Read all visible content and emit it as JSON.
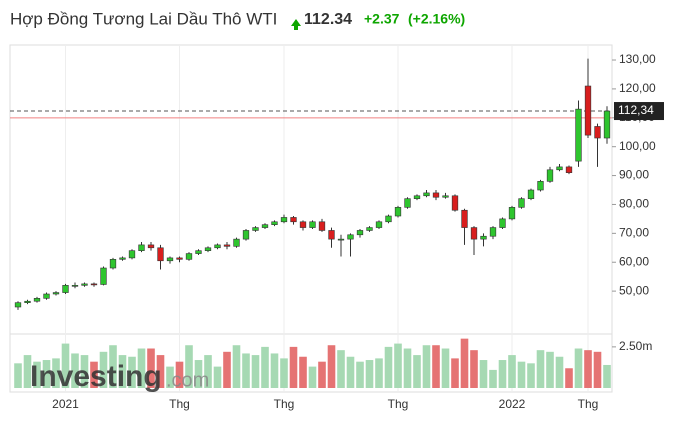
{
  "chart_data": {
    "type": "candlestick",
    "title": "Hợp Đồng Tương Lai Dầu Thô WTI",
    "price": 112.34,
    "change": "+2.37",
    "change_pct": "(+2.16%)",
    "categories": [
      null,
      null,
      null,
      null,
      null,
      "2021",
      null,
      null,
      null,
      null,
      null,
      null,
      null,
      null,
      null,
      null,
      null,
      "Thg",
      null,
      null,
      null,
      null,
      null,
      null,
      null,
      null,
      null,
      null,
      "Thg",
      null,
      null,
      null,
      null,
      null,
      null,
      null,
      null,
      null,
      null,
      null,
      "Thg",
      null,
      null,
      null,
      null,
      null,
      null,
      null,
      null,
      null,
      null,
      null,
      "2022",
      null,
      null,
      null,
      null,
      null,
      null,
      null,
      "Thg",
      null,
      null
    ],
    "open": [
      44.5,
      46,
      46.5,
      47.5,
      49,
      49.5,
      52,
      52,
      52.5,
      52.3,
      58,
      61,
      61.5,
      64,
      66,
      65,
      60.5,
      61.5,
      61,
      63,
      64,
      65,
      66,
      65.5,
      68,
      71,
      72,
      73,
      74,
      75.5,
      74,
      72,
      74,
      71,
      68,
      68,
      69.5,
      71,
      72,
      74,
      76,
      79,
      82,
      83,
      84,
      82.5,
      83,
      78,
      72,
      68,
      69,
      72,
      75,
      79,
      82,
      85,
      88,
      92,
      93,
      95,
      121,
      107,
      103
    ],
    "high": [
      46.5,
      47,
      48,
      49.5,
      50,
      52.5,
      53,
      53,
      53,
      58.5,
      61.5,
      62,
      64.5,
      67,
      67,
      66,
      62,
      62,
      63.5,
      64.5,
      65.5,
      66.5,
      67,
      68.5,
      71.5,
      72.5,
      73.5,
      74.5,
      76.5,
      76,
      74.5,
      74.5,
      75,
      72,
      69.5,
      70,
      71.5,
      72.5,
      74.5,
      76.5,
      79.5,
      82.5,
      83.5,
      85,
      85,
      84,
      83.5,
      78.5,
      72.5,
      70,
      72.5,
      75.5,
      79.5,
      82.5,
      85.5,
      88.5,
      93,
      94,
      93.5,
      116,
      130.5,
      108,
      114
    ],
    "low": [
      43.5,
      45.5,
      46,
      47,
      48.5,
      49,
      51,
      51.5,
      51.5,
      52,
      57.5,
      60.5,
      61,
      63.5,
      64,
      57.5,
      59.5,
      60,
      60.5,
      62.5,
      63.5,
      64.5,
      64.5,
      65,
      67.5,
      70.5,
      71.5,
      72.5,
      73.5,
      73,
      71,
      71.5,
      70.5,
      65,
      62,
      62,
      68.5,
      70.5,
      71.5,
      73.5,
      75.5,
      78.5,
      81.5,
      82.5,
      81.5,
      82,
      77.5,
      66,
      62.5,
      65.5,
      68,
      71.5,
      74.5,
      78.5,
      81.5,
      84.5,
      87.5,
      91.5,
      90.5,
      93,
      103,
      93,
      101
    ],
    "close": [
      46,
      46.5,
      47.5,
      49,
      49.5,
      52,
      52,
      52.5,
      52.3,
      58,
      61,
      61.5,
      64,
      66,
      65,
      60.5,
      61.5,
      61,
      63,
      64,
      65,
      66,
      65.5,
      68,
      71,
      72,
      73,
      74,
      75.5,
      74,
      72,
      74,
      71,
      68,
      68,
      69.5,
      71,
      72,
      74,
      76,
      79,
      82,
      83,
      84,
      82.5,
      83,
      78,
      72,
      68,
      69,
      72,
      75,
      79,
      82,
      85,
      88,
      92,
      93,
      91,
      113,
      104,
      103,
      112.34
    ],
    "volume": [
      1500000,
      2000000,
      1600000,
      1700000,
      1800000,
      2700000,
      2100000,
      2000000,
      1600000,
      2200000,
      2600000,
      2000000,
      1900000,
      2400000,
      2400000,
      2000000,
      1300000,
      1600000,
      2600000,
      1700000,
      2000000,
      1300000,
      2200000,
      2600000,
      2100000,
      2000000,
      2500000,
      2100000,
      1800000,
      2500000,
      1900000,
      1300000,
      1600000,
      2600000,
      2300000,
      1900000,
      1600000,
      1700000,
      1800000,
      2500000,
      2700000,
      2400000,
      2000000,
      2600000,
      2600000,
      2400000,
      1800000,
      3000000,
      2300000,
      1700000,
      1100000,
      1700000,
      2000000,
      1600000,
      1500000,
      2300000,
      2200000,
      1900000,
      1200000,
      2400000,
      2300000,
      2200000,
      1400000
    ],
    "ylim": [
      35.5,
      135.2
    ],
    "yticks": [
      {
        "value": 50,
        "label": "50,00"
      },
      {
        "value": 60,
        "label": "60,00"
      },
      {
        "value": 70,
        "label": "70,00"
      },
      {
        "value": 80,
        "label": "80,00"
      },
      {
        "value": 90,
        "label": "90,00"
      },
      {
        "value": 100,
        "label": "100,00"
      },
      {
        "value": 110,
        "label": "110,00"
      },
      {
        "value": 120,
        "label": "120,00"
      },
      {
        "value": 130,
        "label": "130,00"
      }
    ],
    "volume_ylim": [
      0,
      3100000
    ],
    "volume_yticks": [
      {
        "value": 2500000,
        "label": "2.50m"
      }
    ],
    "price_tag": {
      "value": 112.34,
      "label": "112,34"
    },
    "previous_close": 109.97,
    "up_color": "#2ec52e",
    "down_color": "#d81e1e",
    "volume_up_color": "#a6d9b3",
    "volume_down_color": "#e57373",
    "grid": true,
    "watermark": [
      "Investing",
      ".com"
    ]
  }
}
